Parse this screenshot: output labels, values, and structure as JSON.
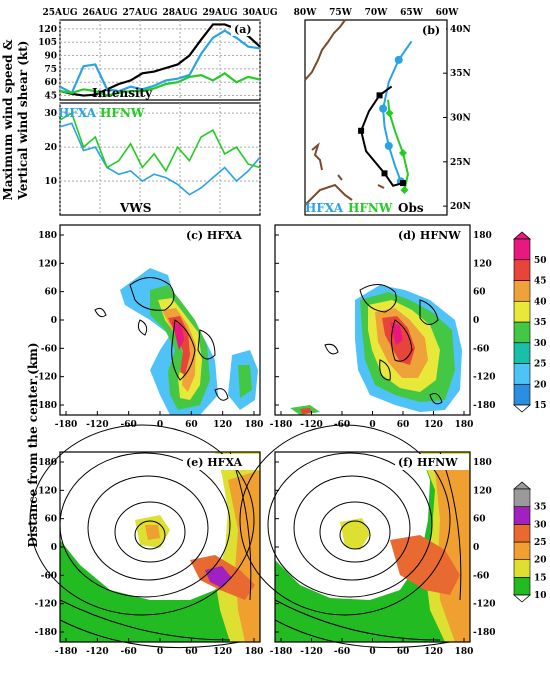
{
  "figure": {
    "ylabel_top": "Maximum wind speed &",
    "ylabel_top2": "Vertical wind shear (kt)",
    "ylabel_bottom": "Distance from the center (km)"
  },
  "chart_data": [
    {
      "id": "a",
      "type": "line",
      "panel_label": "(a)",
      "x_ticks": [
        "25AUG",
        "26AUG",
        "27AUG",
        "28AUG",
        "29AUG",
        "30AUG"
      ],
      "upper": {
        "label": "Intensity",
        "y_ticks": [
          45,
          60,
          75,
          90,
          105,
          120
        ],
        "ylim": [
          40,
          130
        ],
        "series": [
          {
            "name": "",
            "color": "#000000",
            "values": [
              50,
              47,
              45,
              46,
              52,
              58,
              62,
              70,
              72,
              76,
              80,
              90,
              108,
              125,
              125,
              120,
              112,
              100
            ]
          },
          {
            "name": "HFXA",
            "color": "#29a3e6",
            "values": [
              55,
              48,
              78,
              80,
              52,
              50,
              55,
              52,
              56,
              62,
              64,
              68,
              92,
              110,
              118,
              110,
              100,
              98
            ]
          },
          {
            "name": "HFNW",
            "color": "#22cc22",
            "values": [
              50,
              48,
              52,
              50,
              45,
              48,
              50,
              50,
              53,
              58,
              60,
              66,
              68,
              62,
              70,
              60,
              66,
              63
            ]
          }
        ]
      },
      "lower": {
        "label": "VWS",
        "y_ticks": [
          10,
          20,
          30
        ],
        "ylim": [
          0,
          33
        ],
        "series": [
          {
            "name": "HFXA",
            "color": "#29a3e6",
            "values": [
              26,
              27,
              19,
              20,
              14,
              12,
              13,
              10,
              12,
              11,
              9,
              6,
              8,
              11,
              14,
              10,
              13,
              17
            ]
          },
          {
            "name": "HFNW",
            "color": "#22cc22",
            "values": [
              28,
              30,
              20,
              23,
              14,
              16,
              21,
              14,
              18,
              13,
              20,
              16,
              23,
              25,
              18,
              20,
              15,
              14
            ]
          }
        ]
      }
    },
    {
      "id": "b",
      "type": "track",
      "panel_label": "(b)",
      "x_ticks": [
        "80W",
        "75W",
        "70W",
        "65W",
        "60W"
      ],
      "y_ticks": [
        "40N",
        "35N",
        "30N",
        "25N",
        "20N"
      ],
      "legend": [
        "HFXA",
        "HFNW",
        "Obs"
      ],
      "tracks": [
        {
          "name": "HFXA",
          "color": "#29a3e6",
          "points": [
            [
              -66.5,
              22.8
            ],
            [
              -67.3,
              24.5
            ],
            [
              -68.2,
              26.8
            ],
            [
              -68.8,
              29.0
            ],
            [
              -69.0,
              31.0
            ],
            [
              -68.2,
              34.0
            ],
            [
              -66.8,
              36.5
            ],
            [
              -65.0,
              38.6
            ]
          ]
        },
        {
          "name": "HFNW",
          "color": "#22cc22",
          "points": [
            [
              -66.0,
              21.8
            ],
            [
              -65.5,
              23.6
            ],
            [
              -66.2,
              26.0
            ],
            [
              -67.3,
              28.4
            ],
            [
              -68.1,
              30.5
            ],
            [
              -68.3,
              32.0
            ]
          ]
        },
        {
          "name": "Obs",
          "color": "#000000",
          "points": [
            [
              -66.2,
              22.6
            ],
            [
              -67.6,
              22.3
            ],
            [
              -68.8,
              23.7
            ],
            [
              -71.4,
              26.2
            ],
            [
              -72.1,
              28.5
            ],
            [
              -71.0,
              30.7
            ],
            [
              -69.5,
              32.5
            ],
            [
              -67.8,
              33.5
            ]
          ]
        }
      ]
    },
    {
      "id": "c",
      "type": "heatmap",
      "panel_label": "(c) HFXA",
      "x_ticks": [
        -180,
        -120,
        -60,
        0,
        60,
        120,
        180
      ],
      "y_ticks": [
        180,
        120,
        60,
        0,
        -60,
        -120,
        -180
      ],
      "colorbar": {
        "levels": [
          15,
          20,
          25,
          30,
          35,
          40,
          45,
          50
        ],
        "colors": [
          "#2a8fe0",
          "#4fc3f7",
          "#18c0a8",
          "#44c744",
          "#e8e83a",
          "#f0a23a",
          "#e8453a",
          "#e8187e"
        ]
      }
    },
    {
      "id": "d",
      "type": "heatmap",
      "panel_label": "(d) HFNW",
      "x_ticks": [
        -180,
        -120,
        -60,
        0,
        60,
        120,
        180
      ],
      "y_ticks": [
        180,
        120,
        60,
        0,
        -60,
        -120,
        -180
      ]
    },
    {
      "id": "e",
      "type": "heatmap",
      "panel_label": "(e) HFXA",
      "x_ticks": [
        -180,
        -120,
        -60,
        0,
        60,
        120,
        180
      ],
      "y_ticks": [
        180,
        120,
        60,
        0,
        -60,
        -120,
        -180
      ],
      "colorbar": {
        "levels": [
          10,
          15,
          20,
          25,
          30,
          35
        ],
        "colors": [
          "#22bb22",
          "#dde030",
          "#f0a030",
          "#e86a30",
          "#a020c0",
          "#9a9a9a"
        ]
      }
    },
    {
      "id": "f",
      "type": "heatmap",
      "panel_label": "(f) HFNW",
      "x_ticks": [
        -180,
        -120,
        -60,
        0,
        60,
        120,
        180
      ],
      "y_ticks": [
        180,
        120,
        60,
        0,
        -60,
        -120,
        -180
      ]
    }
  ]
}
